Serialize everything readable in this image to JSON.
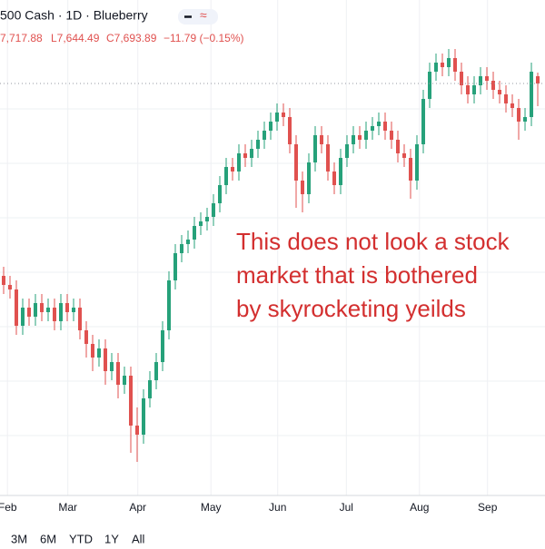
{
  "header": {
    "symbol": "500 Cash · 1D · Blueberry",
    "ohlc": [
      "7,717.88",
      "L7,644.49",
      "C7,693.89",
      "−11.79 (−0.15%)"
    ]
  },
  "range_buttons": [
    "3M",
    "6M",
    "YTD",
    "1Y",
    "All"
  ],
  "chart_data": {
    "type": "candlestick",
    "annotation": [
      "This does not look a stock",
      "market that is bothered",
      "by skyrocketing yeilds"
    ],
    "up_color": "#26a17a",
    "down_color": "#e0514f",
    "xlim": [
      -0.57,
      85.14
    ],
    "xticks": [
      {
        "value": 0.6,
        "label": "Feb"
      },
      {
        "value": 10.1,
        "label": "Mar"
      },
      {
        "value": 21.1,
        "label": "Apr"
      },
      {
        "value": 32.6,
        "label": "May"
      },
      {
        "value": 43.1,
        "label": "Jun"
      },
      {
        "value": 53.9,
        "label": "Jul"
      },
      {
        "value": 65.4,
        "label": "Aug"
      },
      {
        "value": 76.1,
        "label": "Sep"
      }
    ],
    "ylim": [
      6788,
      7778
    ],
    "grid": true,
    "open": [
      7270,
      7250,
      7240,
      7160,
      7200,
      7180,
      7210,
      7190,
      7200,
      7170,
      7210,
      7190,
      7200,
      7150,
      7120,
      7090,
      7110,
      7060,
      7080,
      7030,
      7050,
      6940,
      6920,
      7000,
      7040,
      7080,
      7150,
      7260,
      7320,
      7340,
      7350,
      7380,
      7390,
      7400,
      7430,
      7470,
      7510,
      7500,
      7540,
      7530,
      7550,
      7570,
      7590,
      7610,
      7630,
      7620,
      7560,
      7480,
      7450,
      7520,
      7580,
      7560,
      7500,
      7470,
      7530,
      7560,
      7580,
      7570,
      7590,
      7600,
      7610,
      7590,
      7570,
      7540,
      7530,
      7480,
      7560,
      7660,
      7720,
      7740,
      7730,
      7750,
      7720,
      7690,
      7670,
      7690,
      7710,
      7700,
      7680,
      7670,
      7650,
      7640,
      7610,
      7620,
      7710
    ],
    "high": [
      7290,
      7270,
      7260,
      7220,
      7220,
      7230,
      7230,
      7220,
      7220,
      7230,
      7230,
      7220,
      7220,
      7170,
      7140,
      7130,
      7130,
      7100,
      7100,
      7070,
      7070,
      6980,
      7020,
      7060,
      7100,
      7170,
      7280,
      7340,
      7360,
      7370,
      7400,
      7410,
      7420,
      7450,
      7490,
      7530,
      7530,
      7560,
      7560,
      7570,
      7590,
      7610,
      7630,
      7650,
      7650,
      7640,
      7580,
      7500,
      7540,
      7600,
      7600,
      7580,
      7520,
      7550,
      7580,
      7600,
      7600,
      7610,
      7620,
      7630,
      7630,
      7610,
      7590,
      7560,
      7550,
      7580,
      7680,
      7740,
      7760,
      7760,
      7770,
      7770,
      7740,
      7710,
      7710,
      7730,
      7730,
      7720,
      7700,
      7690,
      7670,
      7660,
      7640,
      7740,
      7718
    ],
    "low": [
      7230,
      7220,
      7140,
      7140,
      7160,
      7160,
      7170,
      7170,
      7150,
      7150,
      7170,
      7170,
      7130,
      7090,
      7060,
      7070,
      7030,
      7040,
      7000,
      7010,
      6880,
      6860,
      6900,
      6980,
      7020,
      7060,
      7130,
      7240,
      7300,
      7320,
      7330,
      7360,
      7370,
      7380,
      7410,
      7450,
      7480,
      7480,
      7510,
      7510,
      7530,
      7550,
      7570,
      7590,
      7600,
      7540,
      7420,
      7410,
      7430,
      7500,
      7540,
      7480,
      7450,
      7450,
      7510,
      7540,
      7550,
      7550,
      7570,
      7580,
      7570,
      7550,
      7520,
      7510,
      7440,
      7460,
      7540,
      7640,
      7700,
      7710,
      7710,
      7700,
      7670,
      7650,
      7650,
      7670,
      7680,
      7660,
      7650,
      7630,
      7620,
      7570,
      7590,
      7600,
      7644
    ],
    "close": [
      7250,
      7240,
      7160,
      7200,
      7180,
      7210,
      7190,
      7200,
      7170,
      7210,
      7190,
      7200,
      7150,
      7120,
      7090,
      7110,
      7060,
      7080,
      7030,
      7050,
      6940,
      6920,
      7000,
      7040,
      7080,
      7150,
      7260,
      7320,
      7340,
      7350,
      7380,
      7390,
      7400,
      7430,
      7470,
      7510,
      7500,
      7540,
      7530,
      7550,
      7570,
      7590,
      7610,
      7630,
      7620,
      7560,
      7480,
      7450,
      7520,
      7580,
      7560,
      7500,
      7470,
      7530,
      7560,
      7580,
      7570,
      7590,
      7600,
      7610,
      7590,
      7570,
      7540,
      7530,
      7480,
      7560,
      7660,
      7720,
      7740,
      7730,
      7750,
      7720,
      7690,
      7670,
      7690,
      7710,
      7700,
      7680,
      7670,
      7650,
      7640,
      7610,
      7620,
      7720,
      7694
    ]
  }
}
